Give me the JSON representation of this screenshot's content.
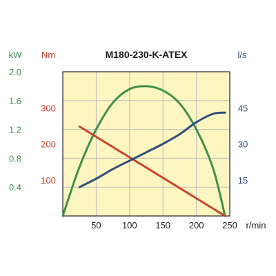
{
  "chart_data": {
    "type": "line",
    "title": "M180-230-K-ATEX",
    "xlabel": "r/min",
    "xlim": [
      0,
      250
    ],
    "x_ticks": [
      "50",
      "100",
      "150",
      "200",
      "250"
    ],
    "y_axes": {
      "power": {
        "unit": "kW",
        "range": [
          0,
          2.0
        ],
        "ticks": [
          "0.4",
          "0.8",
          "1.2",
          "1.6",
          "2.0"
        ],
        "color": "#3f8f4a"
      },
      "torque": {
        "unit": "Nm",
        "range": [
          0,
          400
        ],
        "ticks": [
          "100",
          "200",
          "300"
        ],
        "color": "#c8422e"
      },
      "flow": {
        "unit": "l/s",
        "range": [
          0,
          60
        ],
        "ticks": [
          "15",
          "30",
          "45"
        ],
        "color": "#2e4d7d"
      }
    },
    "series": [
      {
        "axis": "power",
        "color": "#3f8f4a",
        "x": [
          0,
          25,
          50,
          75,
          100,
          125,
          150,
          175,
          200,
          225,
          243
        ],
        "y": [
          0,
          0.68,
          1.2,
          1.57,
          1.76,
          1.8,
          1.74,
          1.56,
          1.2,
          0.66,
          0
        ]
      },
      {
        "axis": "torque",
        "color": "#c8422e",
        "x": [
          25,
          243
        ],
        "y": [
          248,
          0
        ]
      },
      {
        "axis": "flow",
        "color": "#2e4d7d",
        "x": [
          25,
          50,
          75,
          100,
          125,
          150,
          175,
          200,
          225,
          243
        ],
        "y": [
          12,
          15.5,
          19.5,
          23,
          26.5,
          30,
          34,
          39,
          42.5,
          43
        ]
      }
    ],
    "background": "#fef6c0",
    "grid": true,
    "grid_color": "#bdbdbd"
  }
}
